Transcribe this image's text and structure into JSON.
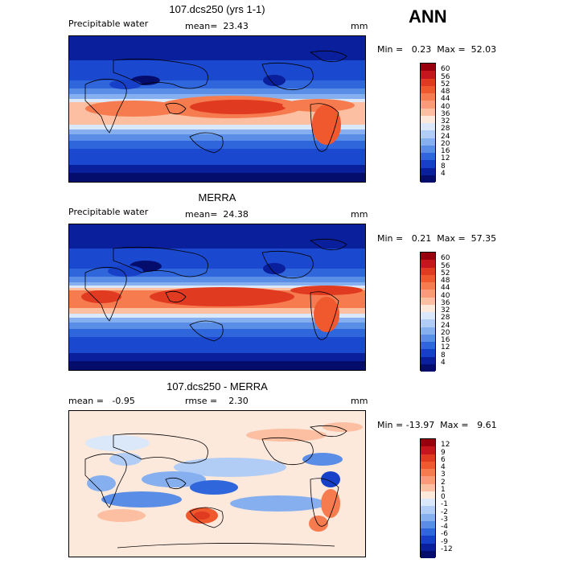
{
  "season": "ANN",
  "panels": [
    {
      "title": "107.dcs250 (yrs 1-1)",
      "left_label": "Precipitable water",
      "mid_label": "mean=  23.43",
      "unit": "mm",
      "minmax": "Min =   0.23  Max =  52.03",
      "levels": [
        "60",
        "56",
        "52",
        "48",
        "44",
        "40",
        "36",
        "32",
        "28",
        "24",
        "20",
        "16",
        "12",
        "8",
        "4"
      ],
      "colors": [
        "#99000d",
        "#c4161c",
        "#e03a21",
        "#f0582d",
        "#f67c4f",
        "#fb9a78",
        "#fdbfa2",
        "#fde8dc",
        "#dae8fa",
        "#b1cdf5",
        "#86afef",
        "#5a8de6",
        "#3066dc",
        "#1740c8",
        "#0a1f9c",
        "#040d6b"
      ]
    },
    {
      "title": "MERRA",
      "left_label": "Precipitable water",
      "mid_label": "mean=  24.38",
      "unit": "mm",
      "minmax": "Min =   0.21  Max =  57.35",
      "levels": [
        "60",
        "56",
        "52",
        "48",
        "44",
        "40",
        "36",
        "32",
        "28",
        "24",
        "20",
        "16",
        "12",
        "8",
        "4"
      ],
      "colors": [
        "#99000d",
        "#c4161c",
        "#e03a21",
        "#f0582d",
        "#f67c4f",
        "#fb9a78",
        "#fdbfa2",
        "#fde8dc",
        "#dae8fa",
        "#b1cdf5",
        "#86afef",
        "#5a8de6",
        "#3066dc",
        "#1740c8",
        "#0a1f9c",
        "#040d6b"
      ]
    },
    {
      "title": "107.dcs250 - MERRA",
      "left_label": "mean =   -0.95",
      "mid_label": "rmse =    2.30",
      "unit": "mm",
      "minmax": "Min = -13.97  Max =   9.61",
      "levels": [
        "12",
        "9",
        "6",
        "4",
        "3",
        "2",
        "1",
        "0",
        "-1",
        "-2",
        "-3",
        "-4",
        "-6",
        "-9",
        "-12"
      ],
      "colors": [
        "#99000d",
        "#c4161c",
        "#e03a21",
        "#f0582d",
        "#f67c4f",
        "#fb9a78",
        "#fdbfa2",
        "#fde8dc",
        "#dae8fa",
        "#b1cdf5",
        "#86afef",
        "#5a8de6",
        "#3066dc",
        "#1740c8",
        "#0a1f9c",
        "#040d6b"
      ]
    }
  ]
}
